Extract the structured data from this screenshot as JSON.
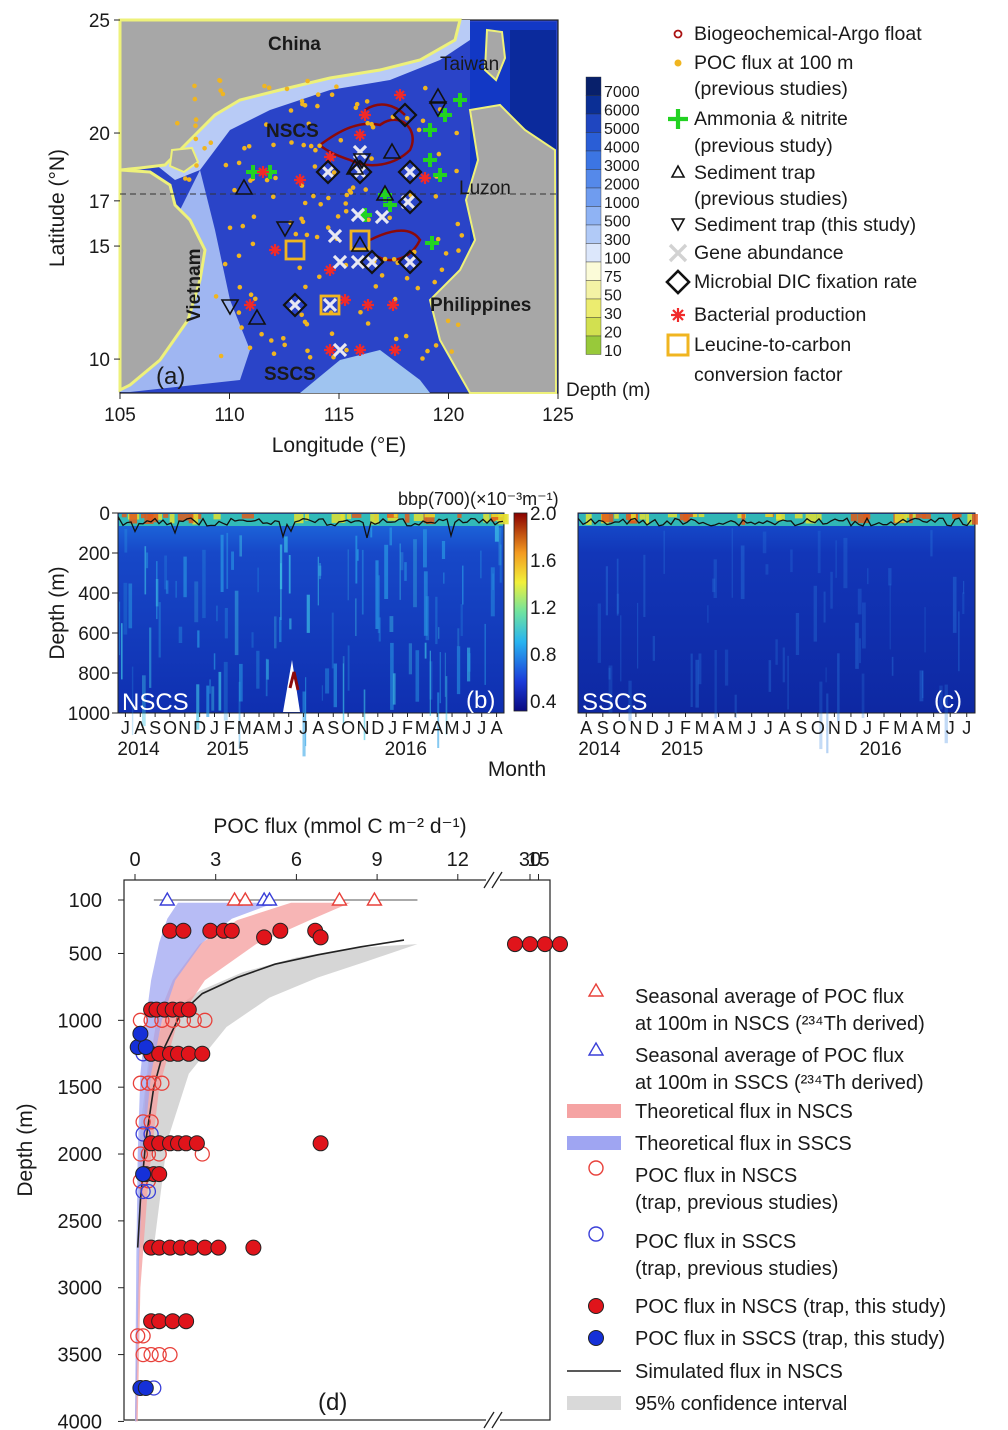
{
  "panel_a": {
    "panel_label": "(a)",
    "xlabel": "Longitude (°E)",
    "ylabel": "Latitude (°N)",
    "xticks": [
      "105",
      "110",
      "115",
      "120",
      "125"
    ],
    "yticks": [
      "25",
      "20",
      "17",
      "15",
      "10"
    ],
    "places": {
      "china": "China",
      "taiwan": "Taiwan",
      "luzon": "Luzon",
      "vietnam": "Vietnam",
      "philippines": "Philippines",
      "nscs": "NSCS",
      "sscs": "SSCS"
    },
    "depth_scale": {
      "title": "Depth (m)",
      "labels": [
        "7000",
        "6000",
        "5000",
        "4000",
        "3000",
        "2000",
        "1000",
        "500",
        "300",
        "100",
        "75",
        "50",
        "30",
        "20",
        "10"
      ],
      "colors": [
        "#08206b",
        "#0b2f95",
        "#1f46c0",
        "#2a5ed6",
        "#3c75e3",
        "#5589ea",
        "#6f9cef",
        "#8fb3f4",
        "#b1caf7",
        "#dce7fb",
        "#fbfbd8",
        "#f4f2a5",
        "#ecec6f",
        "#d2e050",
        "#98c93a"
      ]
    },
    "legend": [
      {
        "text": "Biogeochemical-Argo float",
        "symbol": "argo"
      },
      {
        "text": "POC flux at 100 m",
        "symbol": "dot"
      },
      {
        "text": "(previous studies)",
        "symbol": "none"
      },
      {
        "text": "Ammonia & nitrite",
        "symbol": "plus"
      },
      {
        "text": "(previous study)",
        "symbol": "none"
      },
      {
        "text": "Sediment trap",
        "symbol": "tri-up"
      },
      {
        "text": "(previous studies)",
        "symbol": "none"
      },
      {
        "text": "Sediment trap (this study)",
        "symbol": "tri-down"
      },
      {
        "text": "Gene abundance",
        "symbol": "cross"
      },
      {
        "text": "Microbial DIC fixation rate",
        "symbol": "diamond"
      },
      {
        "text": "Bacterial production",
        "symbol": "star"
      },
      {
        "text": "Leucine-to-carbon",
        "symbol": "square"
      },
      {
        "text": "conversion factor",
        "symbol": "none"
      }
    ]
  },
  "panel_bc": {
    "colorbar_title": "bbp(700)(×10⁻³m⁻¹)",
    "colorbar_ticks": [
      "2.0",
      "1.6",
      "1.2",
      "0.8",
      "0.4"
    ],
    "colorbar_range": [
      0.4,
      2.0
    ],
    "ylabel": "Depth (m)",
    "yticks": [
      "0",
      "200",
      "400",
      "600",
      "800",
      "1000"
    ],
    "xlabel": "Month",
    "b": {
      "region": "NSCS",
      "panel_label": "(b)",
      "months": "JASONDJFMAMJJASONDJFMAMJJA",
      "years": [
        {
          "label": "2014",
          "index": 0
        },
        {
          "label": "2015",
          "index": 6
        },
        {
          "label": "2016",
          "index": 18
        }
      ]
    },
    "c": {
      "region": "SSCS",
      "panel_label": "(c)",
      "months": "ASONDJFMAMJJASONDJFMAMJJ",
      "years": [
        {
          "label": "2014",
          "index": 0
        },
        {
          "label": "2015",
          "index": 5
        },
        {
          "label": "2016",
          "index": 17
        }
      ]
    }
  },
  "chart_data": {
    "type": "scatter",
    "panel_label": "(d)",
    "title": "",
    "xlabel": "POC flux (mmol C m⁻² d⁻¹)",
    "ylabel": "Depth (m)",
    "xticks": [
      "0",
      "3",
      "6",
      "9",
      "12",
      "15",
      "30"
    ],
    "yticks": [
      100,
      500,
      1000,
      1500,
      2000,
      2500,
      3000,
      3500,
      4000
    ],
    "ylim": [
      100,
      4000
    ],
    "xlim": [
      0,
      15
    ],
    "xaxis_break": [
      15,
      30
    ],
    "legend": [
      "Seasonal average of POC flux at 100m in NSCS (234Th derived)",
      "Seasonal average of POC flux at 100m in SSCS (234Th derived)",
      "Theoretical flux in NSCS",
      "Theoretical flux in SSCS",
      "POC flux in NSCS (trap, previous studies)",
      "POC flux in SSCS (trap, previous studies)",
      "POC flux in NSCS (trap, this study)",
      "POC flux in SSCS (trap, this study)",
      "Simulated flux in NSCS",
      "95% confidence interval"
    ],
    "series": [
      {
        "name": "Seasonal average of POC flux at 100m in NSCS (234Th derived)",
        "color": "#e8403a",
        "points": [
          [
            3.7,
            100
          ],
          [
            4.1,
            100
          ],
          [
            7.6,
            100
          ],
          [
            8.9,
            100
          ]
        ]
      },
      {
        "name": "Seasonal average of POC flux at 100m in SSCS (234Th derived)",
        "color": "#3a3fd8",
        "points": [
          [
            1.2,
            100
          ],
          [
            4.8,
            100
          ],
          [
            5.0,
            100
          ]
        ]
      },
      {
        "name": "POC flux in NSCS (trap, this study)",
        "color": "#e0141b",
        "points": [
          [
            1.3,
            330
          ],
          [
            1.8,
            330
          ],
          [
            2.8,
            330
          ],
          [
            3.3,
            330
          ],
          [
            3.6,
            330
          ],
          [
            4.8,
            380
          ],
          [
            5.4,
            330
          ],
          [
            6.7,
            330
          ],
          [
            6.9,
            380
          ],
          [
            0.6,
            920
          ],
          [
            0.8,
            920
          ],
          [
            1.1,
            920
          ],
          [
            1.4,
            920
          ],
          [
            1.7,
            920
          ],
          [
            2.0,
            920
          ],
          [
            0.6,
            1250
          ],
          [
            0.9,
            1250
          ],
          [
            1.3,
            1250
          ],
          [
            1.6,
            1250
          ],
          [
            2.0,
            1250
          ],
          [
            2.5,
            1250
          ],
          [
            0.6,
            1920
          ],
          [
            0.9,
            1920
          ],
          [
            1.3,
            1920
          ],
          [
            1.6,
            1920
          ],
          [
            1.9,
            1920
          ],
          [
            2.3,
            1920
          ],
          [
            6.9,
            1920
          ],
          [
            0.4,
            2150
          ],
          [
            0.7,
            2150
          ],
          [
            0.9,
            2150
          ],
          [
            0.6,
            2700
          ],
          [
            0.9,
            2700
          ],
          [
            1.3,
            2700
          ],
          [
            1.7,
            2700
          ],
          [
            2.1,
            2700
          ],
          [
            2.6,
            2700
          ],
          [
            3.1,
            2700
          ],
          [
            4.4,
            2700
          ],
          [
            0.6,
            3250
          ],
          [
            0.9,
            3250
          ],
          [
            1.4,
            3250
          ],
          [
            1.9,
            3250
          ]
        ]
      },
      {
        "name": "POC flux in NSCS (trap, this study) — off-scale",
        "color": "#e0141b",
        "points": [
          [
            29,
            430
          ],
          [
            30,
            430
          ],
          [
            31,
            430
          ],
          [
            32,
            430
          ]
        ]
      },
      {
        "name": "POC flux in SSCS (trap, this study)",
        "color": "#1530d8",
        "points": [
          [
            0.1,
            1200
          ],
          [
            0.4,
            1200
          ],
          [
            0.2,
            1100
          ],
          [
            0.3,
            2150
          ],
          [
            0.2,
            3750
          ],
          [
            0.4,
            3750
          ]
        ]
      },
      {
        "name": "POC flux in NSCS (trap, previous studies)",
        "color": "#e8403a",
        "points": [
          [
            0.2,
            1000
          ],
          [
            0.6,
            1000
          ],
          [
            1.0,
            1000
          ],
          [
            1.4,
            1000
          ],
          [
            1.8,
            1000
          ],
          [
            2.2,
            1000
          ],
          [
            2.6,
            1000
          ],
          [
            0.2,
            1470
          ],
          [
            0.5,
            1470
          ],
          [
            0.7,
            1470
          ],
          [
            1.0,
            1470
          ],
          [
            0.3,
            1760
          ],
          [
            0.6,
            1760
          ],
          [
            0.2,
            2000
          ],
          [
            0.5,
            2000
          ],
          [
            0.9,
            2000
          ],
          [
            2.5,
            2000
          ],
          [
            0.2,
            2200
          ],
          [
            0.5,
            2200
          ],
          [
            0.3,
            3360
          ],
          [
            0.1,
            3360
          ],
          [
            0.3,
            3500
          ],
          [
            0.6,
            3500
          ],
          [
            0.9,
            3500
          ],
          [
            1.3,
            3500
          ]
        ]
      },
      {
        "name": "POC flux in SSCS (trap, previous studies)",
        "color": "#3a3fd8",
        "points": [
          [
            0.3,
            1250
          ],
          [
            0.6,
            1250
          ],
          [
            0.9,
            1250
          ],
          [
            0.3,
            1850
          ],
          [
            0.6,
            1850
          ],
          [
            0.3,
            2280
          ],
          [
            0.5,
            2280
          ],
          [
            0.7,
            3750
          ]
        ]
      },
      {
        "name": "Simulated flux in NSCS",
        "color": "#222222",
        "points": [
          [
            0.1,
            2700
          ],
          [
            0.2,
            2350
          ],
          [
            0.4,
            1900
          ],
          [
            0.7,
            1500
          ],
          [
            1.1,
            1200
          ],
          [
            1.7,
            950
          ],
          [
            2.5,
            800
          ],
          [
            3.8,
            680
          ],
          [
            5.2,
            580
          ],
          [
            6.8,
            510
          ],
          [
            8.4,
            450
          ],
          [
            10.0,
            400
          ]
        ]
      },
      {
        "name": "95% confidence interval",
        "color": "#cfcfcf",
        "points": [
          [
            0.7,
            2700
          ],
          [
            1.2,
            1900
          ],
          [
            2.0,
            1400
          ],
          [
            3.4,
            1050
          ],
          [
            5.0,
            830
          ],
          [
            6.8,
            680
          ],
          [
            8.6,
            560
          ],
          [
            10.5,
            430
          ],
          [
            0.1,
            2700
          ],
          [
            0.2,
            1800
          ],
          [
            0.5,
            1300
          ],
          [
            1.2,
            950
          ],
          [
            2.4,
            780
          ],
          [
            4.0,
            640
          ],
          [
            6.0,
            530
          ],
          [
            8.0,
            460
          ]
        ]
      },
      {
        "name": "Theoretical flux in NSCS",
        "color": "#f5a3a3",
        "points": [
          [
            0.1,
            4000
          ],
          [
            0.2,
            3000
          ],
          [
            0.5,
            2200
          ],
          [
            0.9,
            1500
          ],
          [
            1.6,
            1000
          ],
          [
            2.6,
            700
          ],
          [
            4.5,
            430
          ],
          [
            6.5,
            250
          ],
          [
            8.0,
            120
          ],
          [
            0.0,
            4000
          ],
          [
            0.1,
            3000
          ],
          [
            0.2,
            2200
          ],
          [
            0.4,
            1500
          ],
          [
            0.8,
            1000
          ],
          [
            1.4,
            700
          ],
          [
            2.4,
            430
          ],
          [
            3.8,
            250
          ],
          [
            5.8,
            120
          ]
        ]
      },
      {
        "name": "Theoretical flux in SSCS",
        "color": "#9fa5f2",
        "points": [
          [
            0.05,
            4000
          ],
          [
            0.15,
            2800
          ],
          [
            0.3,
            2000
          ],
          [
            0.6,
            1400
          ],
          [
            1.0,
            1000
          ],
          [
            1.5,
            700
          ],
          [
            2.5,
            420
          ],
          [
            3.6,
            240
          ],
          [
            5.2,
            120
          ],
          [
            0.0,
            4000
          ],
          [
            0.05,
            2800
          ],
          [
            0.1,
            2000
          ],
          [
            0.2,
            1400
          ],
          [
            0.4,
            1000
          ],
          [
            0.6,
            700
          ],
          [
            0.9,
            420
          ],
          [
            1.2,
            240
          ],
          [
            1.6,
            120
          ]
        ]
      }
    ]
  }
}
